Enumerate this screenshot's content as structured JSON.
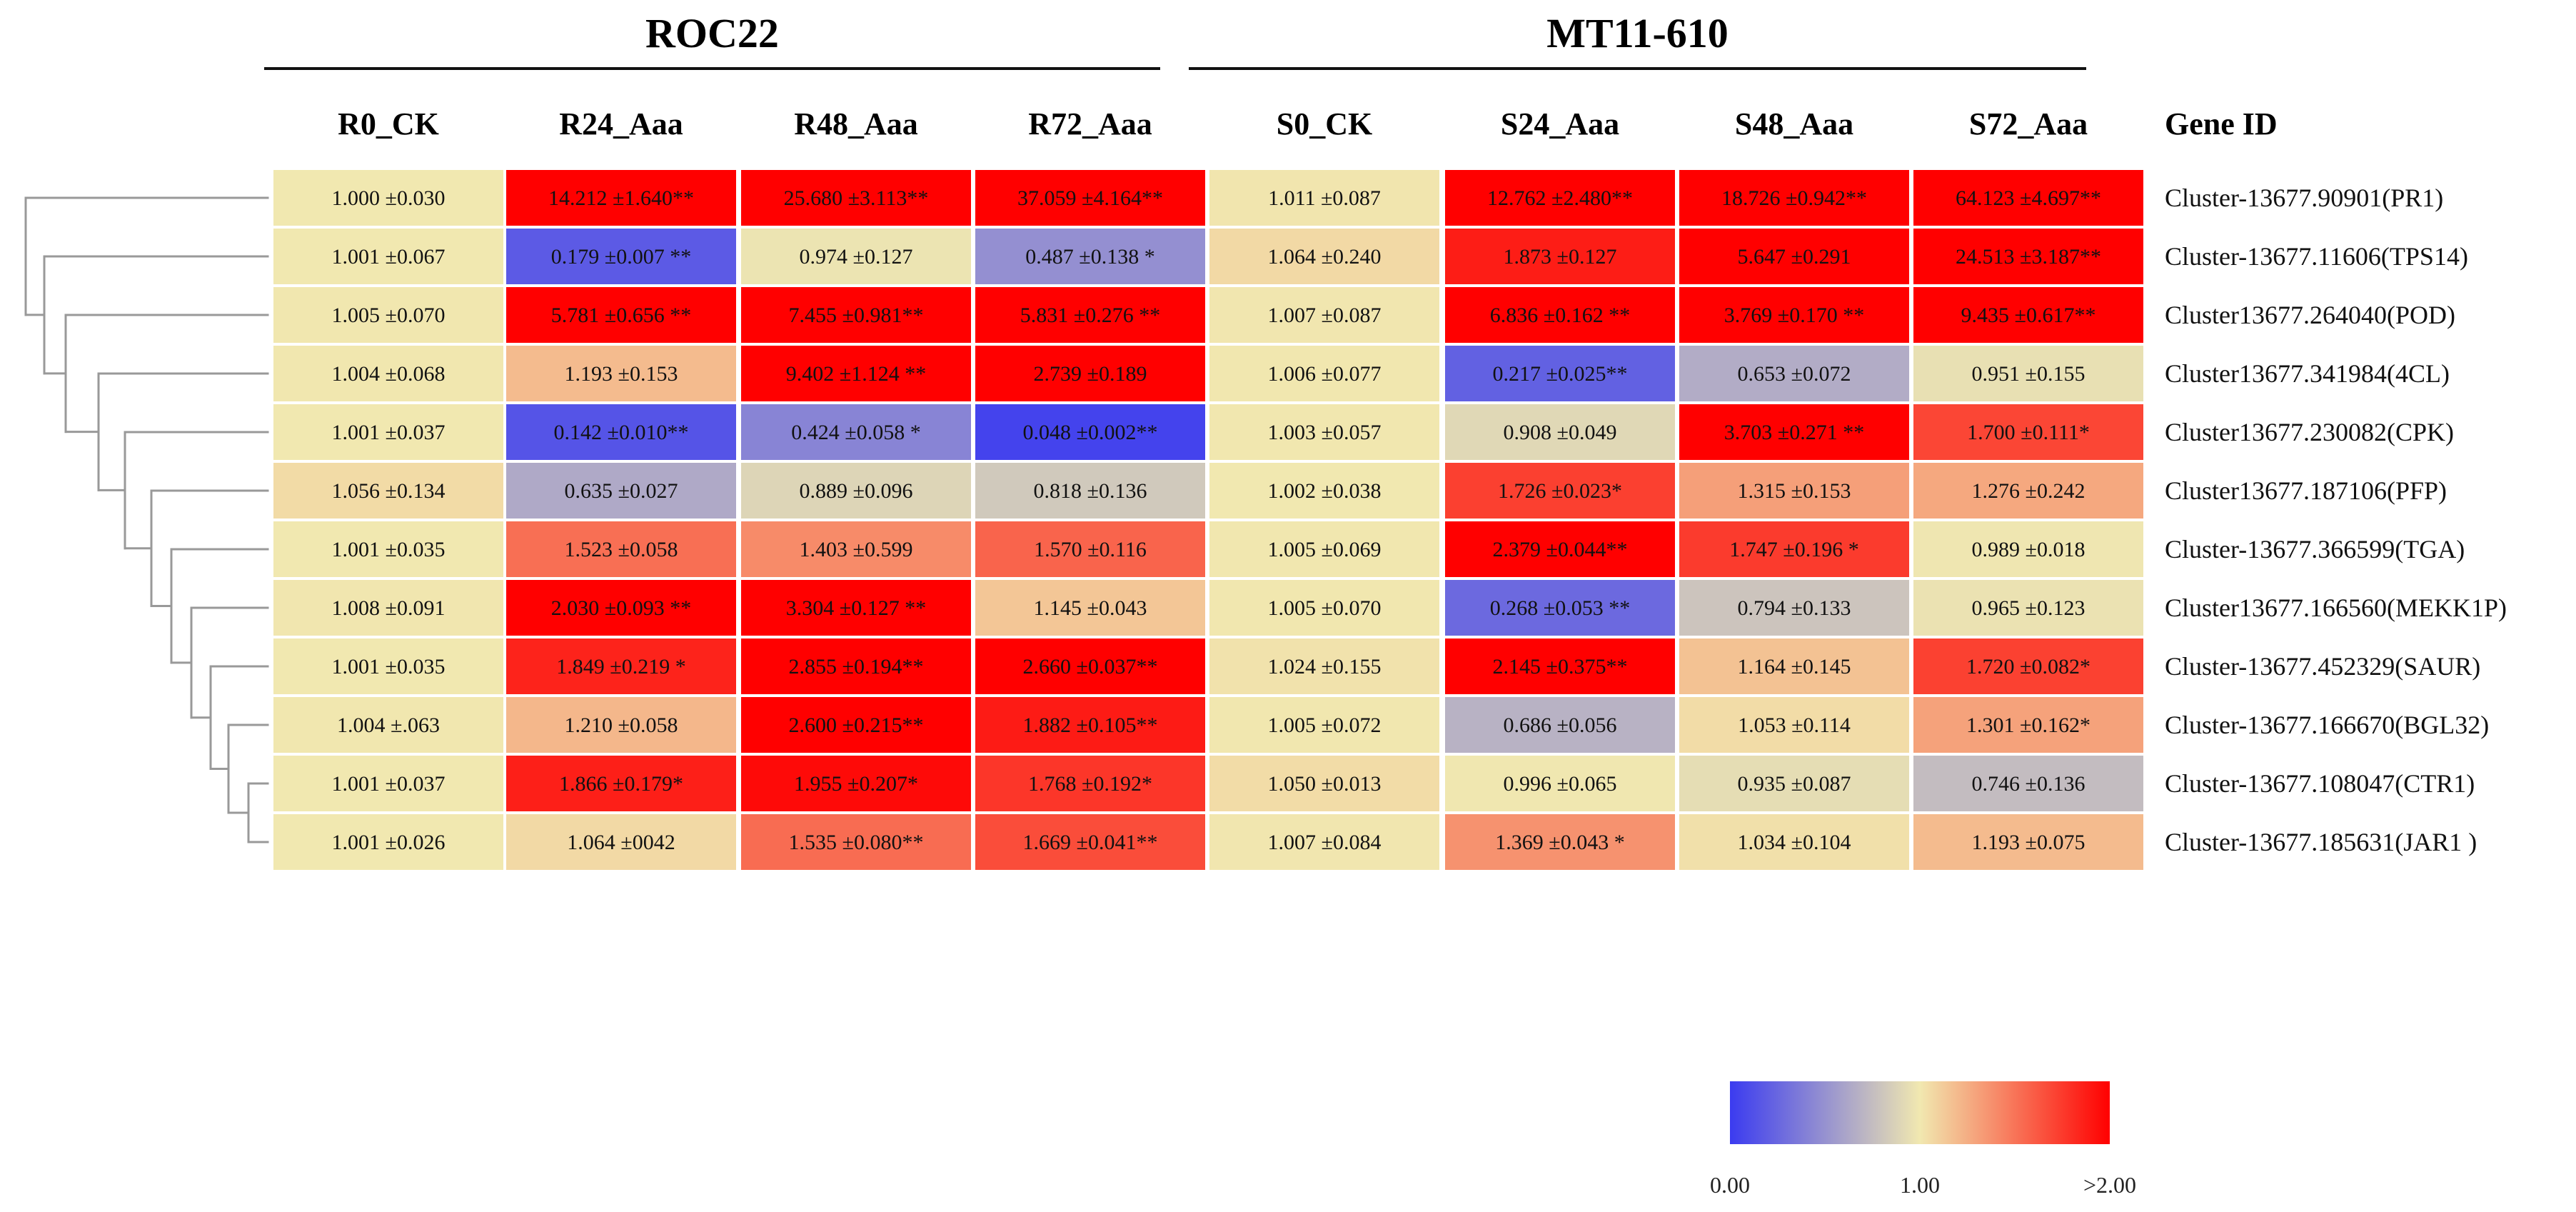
{
  "chart_data": {
    "type": "heatmap",
    "groups": [
      {
        "name": "ROC22",
        "columns": [
          "R0_CK",
          "R24_Aaa",
          "R48_Aaa",
          "R72_Aaa"
        ]
      },
      {
        "name": "MT11-610",
        "columns": [
          "S0_CK",
          "S24_Aaa",
          "S48_Aaa",
          "S72_Aaa"
        ]
      }
    ],
    "columns": [
      "R0_CK",
      "R24_Aaa",
      "R48_Aaa",
      "R72_Aaa",
      "S0_CK",
      "S24_Aaa",
      "S48_Aaa",
      "S72_Aaa"
    ],
    "row_header": "Gene ID",
    "rows": [
      "Cluster-13677.90901(PR1)",
      "Cluster-13677.11606(TPS14)",
      "Cluster13677.264040(POD)",
      "Cluster13677.341984(4CL)",
      "Cluster13677.230082(CPK)",
      "Cluster13677.187106(PFP)",
      "Cluster-13677.366599(TGA)",
      "Cluster13677.166560(MEKK1P)",
      "Cluster-13677.452329(SAUR)",
      "Cluster-13677.166670(BGL32)",
      "Cluster-13677.108047(CTR1)",
      "Cluster-13677.185631(JAR1 )"
    ],
    "values": [
      [
        1.0,
        14.212,
        25.68,
        37.059,
        1.011,
        12.762,
        18.726,
        64.123
      ],
      [
        1.001,
        0.179,
        0.974,
        0.487,
        1.064,
        1.873,
        5.647,
        24.513
      ],
      [
        1.005,
        5.781,
        7.455,
        5.831,
        1.007,
        6.836,
        3.769,
        9.435
      ],
      [
        1.004,
        1.193,
        9.402,
        2.739,
        1.006,
        0.217,
        0.653,
        0.951
      ],
      [
        1.001,
        0.142,
        0.424,
        0.048,
        1.003,
        0.908,
        3.703,
        1.7
      ],
      [
        1.056,
        0.635,
        0.889,
        0.818,
        1.002,
        1.726,
        1.315,
        1.276
      ],
      [
        1.001,
        1.523,
        1.403,
        1.57,
        1.005,
        2.379,
        1.747,
        0.989
      ],
      [
        1.008,
        2.03,
        3.304,
        1.145,
        1.005,
        0.268,
        0.794,
        0.965
      ],
      [
        1.001,
        1.849,
        2.855,
        2.66,
        1.024,
        2.145,
        1.164,
        1.72
      ],
      [
        1.004,
        1.21,
        2.6,
        1.882,
        1.005,
        0.686,
        1.053,
        1.301
      ],
      [
        1.001,
        1.866,
        1.955,
        1.768,
        1.05,
        0.996,
        0.935,
        0.746
      ],
      [
        1.001,
        1.064,
        1.535,
        1.669,
        1.007,
        1.369,
        1.034,
        1.193
      ]
    ],
    "labels": [
      [
        "1.000 ±0.030",
        "14.212 ±1.640**",
        "25.680 ±3.113**",
        "37.059 ±4.164**",
        "1.011 ±0.087",
        "12.762 ±2.480**",
        "18.726 ±0.942**",
        "64.123 ±4.697**"
      ],
      [
        "1.001 ±0.067",
        "0.179 ±0.007 **",
        "0.974 ±0.127",
        "0.487 ±0.138 *",
        "1.064 ±0.240",
        "1.873 ±0.127",
        "5.647 ±0.291",
        "24.513 ±3.187**"
      ],
      [
        "1.005 ±0.070",
        "5.781 ±0.656 **",
        "7.455 ±0.981**",
        "5.831 ±0.276 **",
        "1.007 ±0.087",
        "6.836 ±0.162 **",
        "3.769 ±0.170 **",
        "9.435 ±0.617**"
      ],
      [
        "1.004 ±0.068",
        "1.193 ±0.153",
        "9.402 ±1.124 **",
        "2.739 ±0.189",
        "1.006 ±0.077",
        "0.217 ±0.025**",
        "0.653 ±0.072",
        "0.951 ±0.155"
      ],
      [
        "1.001 ±0.037",
        "0.142 ±0.010**",
        "0.424 ±0.058 *",
        "0.048 ±0.002**",
        "1.003 ±0.057",
        "0.908 ±0.049",
        "3.703 ±0.271 **",
        "1.700 ±0.111*"
      ],
      [
        "1.056 ±0.134",
        "0.635 ±0.027",
        "0.889 ±0.096",
        "0.818 ±0.136",
        "1.002 ±0.038",
        "1.726 ±0.023*",
        "1.315 ±0.153",
        "1.276 ±0.242"
      ],
      [
        "1.001 ±0.035",
        "1.523 ±0.058",
        "1.403 ±0.599",
        "1.570 ±0.116",
        "1.005 ±0.069",
        "2.379 ±0.044**",
        "1.747 ±0.196 *",
        "0.989 ±0.018"
      ],
      [
        "1.008 ±0.091",
        "2.030 ±0.093 **",
        "3.304 ±0.127 **",
        "1.145 ±0.043",
        "1.005 ±0.070",
        "0.268 ±0.053 **",
        "0.794 ±0.133",
        "0.965 ±0.123"
      ],
      [
        "1.001 ±0.035",
        "1.849 ±0.219 *",
        "2.855 ±0.194**",
        "2.660 ±0.037**",
        "1.024 ±0.155",
        "2.145 ±0.375**",
        "1.164 ±0.145",
        "1.720 ±0.082*"
      ],
      [
        "1.004 ±.063",
        "1.210 ±0.058",
        "2.600 ±0.215**",
        "1.882 ±0.105**",
        "1.005 ±0.072",
        "0.686 ±0.056",
        "1.053 ±0.114",
        "1.301 ±0.162*"
      ],
      [
        "1.001 ±0.037",
        "1.866 ±0.179*",
        "1.955 ±0.207*",
        "1.768 ±0.192*",
        "1.050 ±0.013",
        "0.996 ±0.065",
        "0.935 ±0.087",
        "0.746 ±0.136"
      ],
      [
        "1.001 ±0.026",
        "1.064 ±0042",
        "1.535 ±0.080**",
        "1.669 ±0.041**",
        "1.007 ±0.084",
        "1.369 ±0.043 *",
        "1.034 ±0.104",
        "1.193 ±0.075"
      ]
    ],
    "color_scale": {
      "min": 0.0,
      "mid": 1.0,
      "max": 2.0,
      "colors": [
        "#3b3bf0",
        "#f1e8b0",
        "#ff0000"
      ],
      "tick_labels": [
        "0.00",
        "1.00",
        ">2.00"
      ]
    },
    "dendrogram": "rows",
    "dendrogram_color": "#999999"
  }
}
